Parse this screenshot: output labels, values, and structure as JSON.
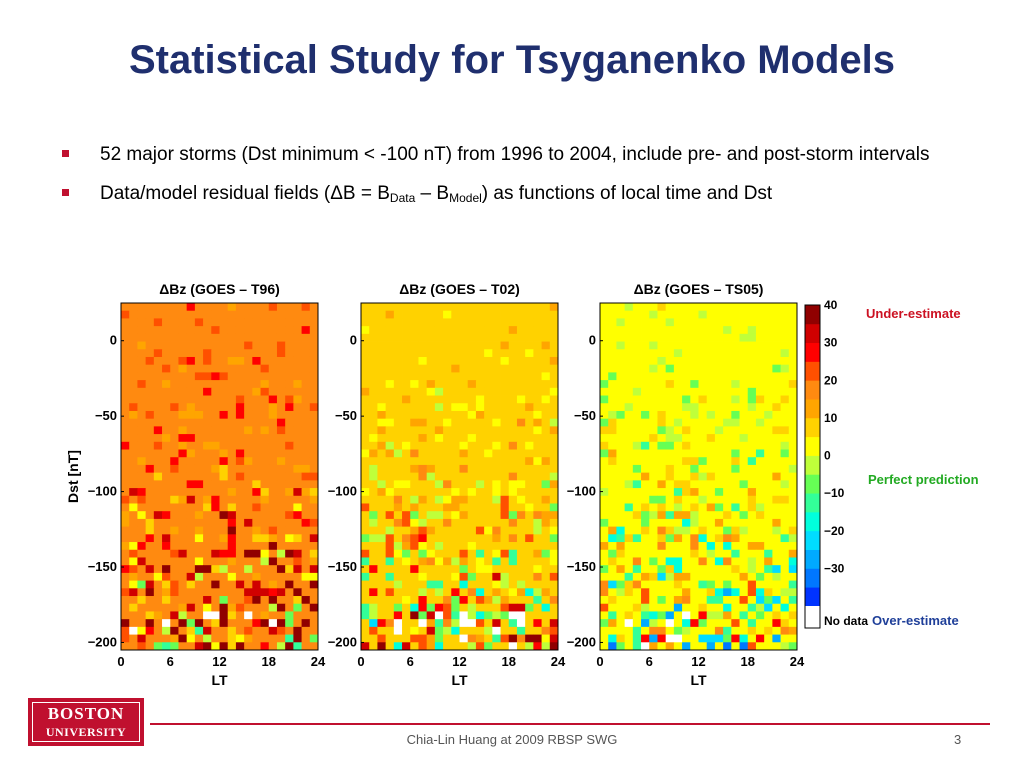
{
  "slide": {
    "title": "Statistical Study for Tsyganenko Models",
    "bullets": [
      {
        "text": "52 major storms (Dst minimum < -100 nT) from 1996 to 2004, include pre- and post-storm intervals"
      },
      {
        "pre": "Data/model residual fields (ΔB = B",
        "sub1": "Data",
        "mid": " – B",
        "sub2": "Model",
        "post": ") as functions of local time and Dst"
      }
    ],
    "annotations": {
      "under": "Under-estimate",
      "perfect": "Perfect prediction",
      "over": "Over-estimate"
    },
    "logo": {
      "line1": "BOSTON",
      "line2": "UNIVERSITY"
    },
    "footer": "Chia-Lin Huang at 2009 RBSP SWG",
    "page_number": "3",
    "colors": {
      "title": "#1f2f6e",
      "accent": "#c0102f"
    }
  },
  "chart_data": [
    {
      "type": "heatmap",
      "title": "ΔBz (GOES – T96)",
      "xlabel": "LT",
      "ylabel": "Dst [nT]",
      "xticks": [
        "0",
        "6",
        "12",
        "18",
        "24"
      ],
      "yticks": [
        "0",
        "−50",
        "−100",
        "−150",
        "−200"
      ],
      "xlim": [
        0,
        24
      ],
      "ylim": [
        -205,
        25
      ],
      "dominant_value": 22,
      "dominant_color": "#ff8a10"
    },
    {
      "type": "heatmap",
      "title": "ΔBz (GOES – T02)",
      "xlabel": "LT",
      "ylabel": "",
      "xticks": [
        "0",
        "6",
        "12",
        "18",
        "24"
      ],
      "yticks": [
        "0",
        "−50",
        "−100",
        "−150",
        "−200"
      ],
      "xlim": [
        0,
        24
      ],
      "ylim": [
        -205,
        25
      ],
      "dominant_value": 10,
      "dominant_color": "#ffff00"
    },
    {
      "type": "heatmap",
      "title": "ΔBz (GOES – TS05)",
      "xlabel": "LT",
      "ylabel": "",
      "xticks": [
        "0",
        "6",
        "12",
        "18",
        "24"
      ],
      "yticks": [
        "0",
        "−50",
        "−100",
        "−150",
        "−200"
      ],
      "xlim": [
        0,
        24
      ],
      "ylim": [
        -205,
        25
      ],
      "dominant_value": 3,
      "dominant_color": "#bfff3a"
    }
  ],
  "colorbar": {
    "range": [
      -40,
      40
    ],
    "ticks": [
      "40",
      "30",
      "20",
      "10",
      "0",
      "−10",
      "−20",
      "−30"
    ],
    "no_data_label": "No data",
    "colors": [
      "#ffffff",
      "#0000ff",
      "#0033ff",
      "#0077ff",
      "#00aaff",
      "#00ddff",
      "#00ffdd",
      "#33ff99",
      "#66ff55",
      "#bfff3a",
      "#ffff00",
      "#ffd200",
      "#ffa500",
      "#ff8a10",
      "#ff5000",
      "#ff0000",
      "#d00000",
      "#900000"
    ]
  }
}
